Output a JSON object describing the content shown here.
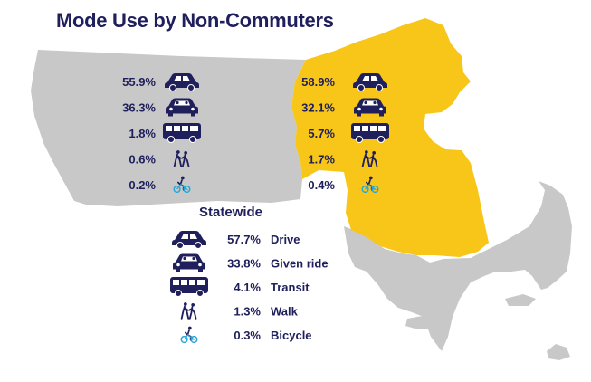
{
  "title": "Mode Use by Non-Commuters",
  "colors": {
    "navy": "#1f1f5c",
    "gray_region": "#c8c8c8",
    "yellow_region": "#f7c619",
    "bicycle": "#27a6d8"
  },
  "chart_data": {
    "type": "table",
    "title": "Mode Use by Non-Commuters",
    "modes": [
      "Drive",
      "Given ride",
      "Transit",
      "Walk",
      "Bicycle"
    ],
    "icons": [
      "car-icon",
      "given-ride-icon",
      "bus-icon",
      "walk-icon",
      "bicycle-icon"
    ],
    "regions": [
      {
        "region": "gray",
        "values": [
          55.9,
          36.3,
          1.8,
          0.6,
          0.2
        ],
        "labels": [
          "55.9%",
          "36.3%",
          "1.8%",
          "0.6%",
          "0.2%"
        ]
      },
      {
        "region": "yellow",
        "values": [
          58.9,
          32.1,
          5.7,
          1.7,
          0.4
        ],
        "labels": [
          "58.9%",
          "32.1%",
          "5.7%",
          "1.7%",
          "0.4%"
        ]
      }
    ],
    "statewide": {
      "heading": "Statewide",
      "values": [
        57.7,
        33.8,
        4.1,
        1.3,
        0.3
      ],
      "labels": [
        "57.7%",
        "33.8%",
        "4.1%",
        "1.3%",
        "0.3%"
      ]
    }
  }
}
